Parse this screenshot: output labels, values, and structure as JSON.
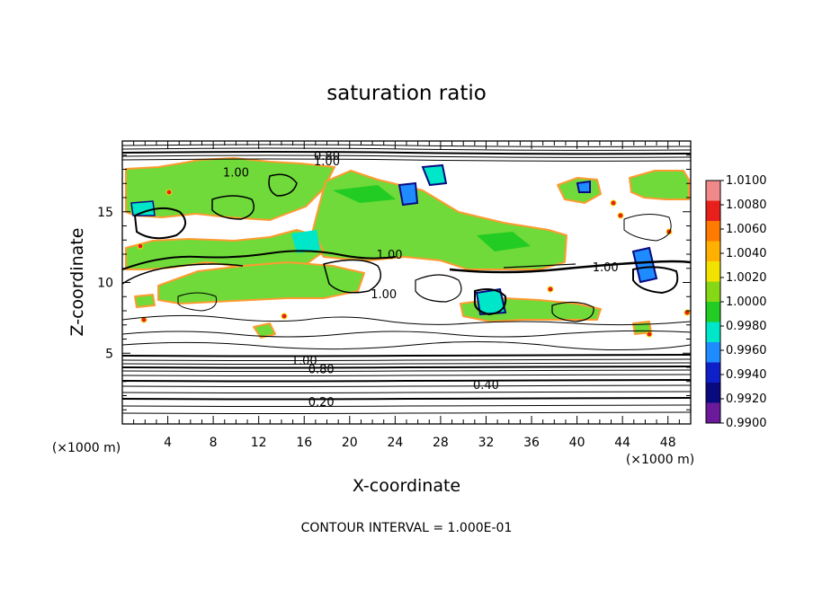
{
  "chart_data": {
    "type": "heatmap",
    "title": "saturation ratio",
    "xlabel": "X-coordinate",
    "ylabel": "Z-coordinate",
    "x_unit": "(×1000 m)",
    "y_unit": "(×1000 m)",
    "xlim": [
      0,
      50
    ],
    "ylim": [
      0,
      20
    ],
    "x_ticks": [
      4,
      8,
      12,
      16,
      20,
      24,
      28,
      32,
      36,
      40,
      44,
      48
    ],
    "y_ticks": [
      5,
      10,
      15
    ],
    "colorbar": {
      "ticks": [
        "1.0100",
        "1.0080",
        "1.0060",
        "1.0040",
        "1.0020",
        "1.0000",
        "0.9980",
        "0.9960",
        "0.9940",
        "0.9920",
        "0.9900"
      ],
      "colors": [
        "#f08a8a",
        "#e8201c",
        "#ff7a00",
        "#ffb000",
        "#f2e200",
        "#86d816",
        "#22cc22",
        "#00e6c8",
        "#1e8cff",
        "#1020c8",
        "#0a0a80",
        "#6a1a9a"
      ]
    },
    "contour_labels": [
      {
        "text": "0.80",
        "x": 18.0,
        "y": 19.0
      },
      {
        "text": "1.00",
        "x": 18.0,
        "y": 18.6
      },
      {
        "text": "1.00",
        "x": 10.0,
        "y": 17.8
      },
      {
        "text": "1.00",
        "x": 23.5,
        "y": 12.0
      },
      {
        "text": "1.00",
        "x": 42.5,
        "y": 11.1
      },
      {
        "text": "1.00",
        "x": 23.0,
        "y": 9.2
      },
      {
        "text": "1.00",
        "x": 16.0,
        "y": 4.5
      },
      {
        "text": "0.80",
        "x": 17.5,
        "y": 3.9
      },
      {
        "text": "0.40",
        "x": 32.0,
        "y": 2.8
      },
      {
        "text": "0.20",
        "x": 17.5,
        "y": 1.6
      }
    ],
    "contour_interval_text": "CONTOUR INTERVAL = 1.000E-01"
  }
}
